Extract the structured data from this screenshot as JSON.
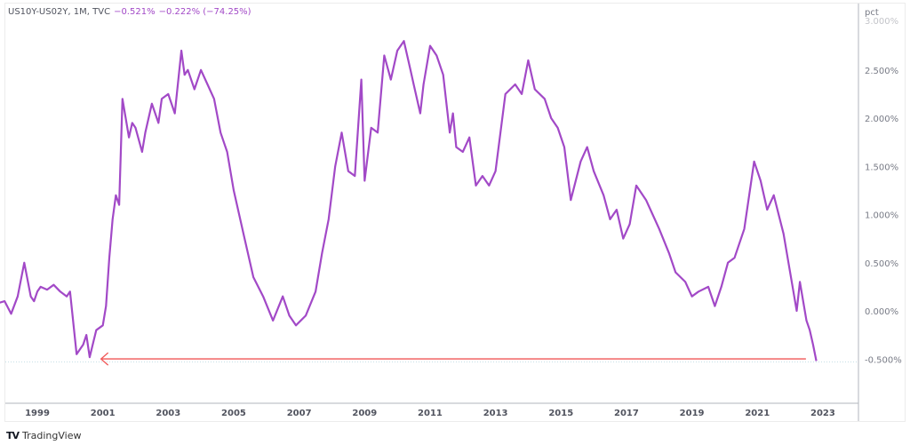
{
  "legend": {
    "symbol": "US10Y-US02Y, 1M, TVC",
    "last": "−0.521%",
    "change": "−0.222% (−74.25%)"
  },
  "axis": {
    "unit": "pct",
    "y_ticks": [
      "3.000%",
      "2.500%",
      "2.000%",
      "1.500%",
      "1.000%",
      "0.500%",
      "0.000%",
      "-0.500%"
    ],
    "x_ticks": [
      "1999",
      "2001",
      "2003",
      "2005",
      "2007",
      "2009",
      "2011",
      "2013",
      "2015",
      "2017",
      "2019",
      "2021",
      "2023"
    ]
  },
  "brand": {
    "logo": "TV",
    "name": "TradingView"
  },
  "colors": {
    "series": "#a249c7",
    "arrow": "#f05656",
    "grid": "#d1e8ec"
  },
  "chart_data": {
    "type": "line",
    "title": "US10Y-US02Y, 1M, TVC",
    "xlabel": "",
    "ylabel": "pct",
    "ylim": [
      -0.85,
      3.05
    ],
    "grid": false,
    "legend_position": "top-left",
    "series": [
      {
        "name": "US10Y-US02Y",
        "x": [
          1997.6,
          1997.8,
          1998.0,
          1998.2,
          1998.4,
          1998.6,
          1998.8,
          1998.9,
          1999.0,
          1999.1,
          1999.3,
          1999.5,
          1999.7,
          1999.9,
          2000.0,
          2000.2,
          2000.4,
          2000.5,
          2000.6,
          2000.8,
          2001.0,
          2001.1,
          2001.2,
          2001.3,
          2001.4,
          2001.5,
          2001.6,
          2001.8,
          2001.9,
          2002.0,
          2002.2,
          2002.3,
          2002.5,
          2002.7,
          2002.8,
          2003.0,
          2003.2,
          2003.4,
          2003.5,
          2003.6,
          2003.8,
          2004.0,
          2004.2,
          2004.4,
          2004.6,
          2004.8,
          2005.0,
          2005.3,
          2005.6,
          2005.9,
          2006.2,
          2006.5,
          2006.7,
          2006.9,
          2007.2,
          2007.5,
          2007.7,
          2007.9,
          2008.1,
          2008.3,
          2008.5,
          2008.7,
          2008.9,
          2009.0,
          2009.2,
          2009.4,
          2009.6,
          2009.8,
          2010.0,
          2010.2,
          2010.4,
          2010.5,
          2010.7,
          2010.8,
          2011.0,
          2011.2,
          2011.4,
          2011.6,
          2011.7,
          2011.8,
          2012.0,
          2012.2,
          2012.4,
          2012.6,
          2012.8,
          2013.0,
          2013.3,
          2013.6,
          2013.8,
          2014.0,
          2014.2,
          2014.5,
          2014.7,
          2014.9,
          2015.1,
          2015.3,
          2015.6,
          2015.8,
          2016.0,
          2016.3,
          2016.5,
          2016.7,
          2016.9,
          2017.1,
          2017.3,
          2017.6,
          2017.8,
          2018.0,
          2018.3,
          2018.5,
          2018.8,
          2019.0,
          2019.2,
          2019.5,
          2019.7,
          2019.9,
          2020.1,
          2020.3,
          2020.6,
          2020.9,
          2021.1,
          2021.3,
          2021.5,
          2021.8,
          2022.0,
          2022.2,
          2022.3,
          2022.5,
          2022.6,
          2022.7,
          2022.8
        ],
        "values": [
          0.2,
          0.08,
          0.1,
          -0.03,
          0.15,
          0.5,
          0.15,
          0.1,
          0.2,
          0.25,
          0.22,
          0.27,
          0.2,
          0.15,
          0.2,
          -0.45,
          -0.35,
          -0.25,
          -0.48,
          -0.2,
          -0.15,
          0.05,
          0.55,
          0.95,
          1.2,
          1.1,
          2.2,
          1.8,
          1.95,
          1.9,
          1.65,
          1.85,
          2.15,
          1.95,
          2.2,
          2.25,
          2.05,
          2.7,
          2.45,
          2.5,
          2.3,
          2.5,
          2.35,
          2.2,
          1.85,
          1.65,
          1.25,
          0.8,
          0.35,
          0.15,
          -0.1,
          0.15,
          -0.05,
          -0.15,
          -0.05,
          0.2,
          0.6,
          0.95,
          1.5,
          1.85,
          1.45,
          1.4,
          2.4,
          1.35,
          1.9,
          1.85,
          2.65,
          2.4,
          2.7,
          2.8,
          2.5,
          2.35,
          2.05,
          2.35,
          2.75,
          2.65,
          2.45,
          1.85,
          2.05,
          1.7,
          1.65,
          1.8,
          1.3,
          1.4,
          1.3,
          1.45,
          2.25,
          2.35,
          2.25,
          2.6,
          2.3,
          2.2,
          2.0,
          1.9,
          1.7,
          1.15,
          1.55,
          1.7,
          1.45,
          1.2,
          0.95,
          1.05,
          0.75,
          0.9,
          1.3,
          1.15,
          1.0,
          0.85,
          0.6,
          0.4,
          0.3,
          0.15,
          0.2,
          0.25,
          0.05,
          0.25,
          0.5,
          0.55,
          0.85,
          1.55,
          1.35,
          1.05,
          1.2,
          0.8,
          0.4,
          0.0,
          0.3,
          -0.1,
          -0.2,
          -0.35,
          -0.52
        ]
      }
    ],
    "annotations": [
      {
        "type": "horizontal-arrow",
        "y": -0.48,
        "from_x": 2022.7,
        "to_x": 2001.0,
        "color": "#f05656",
        "direction": "left"
      },
      {
        "type": "dotted-level",
        "y": -0.521
      }
    ]
  }
}
